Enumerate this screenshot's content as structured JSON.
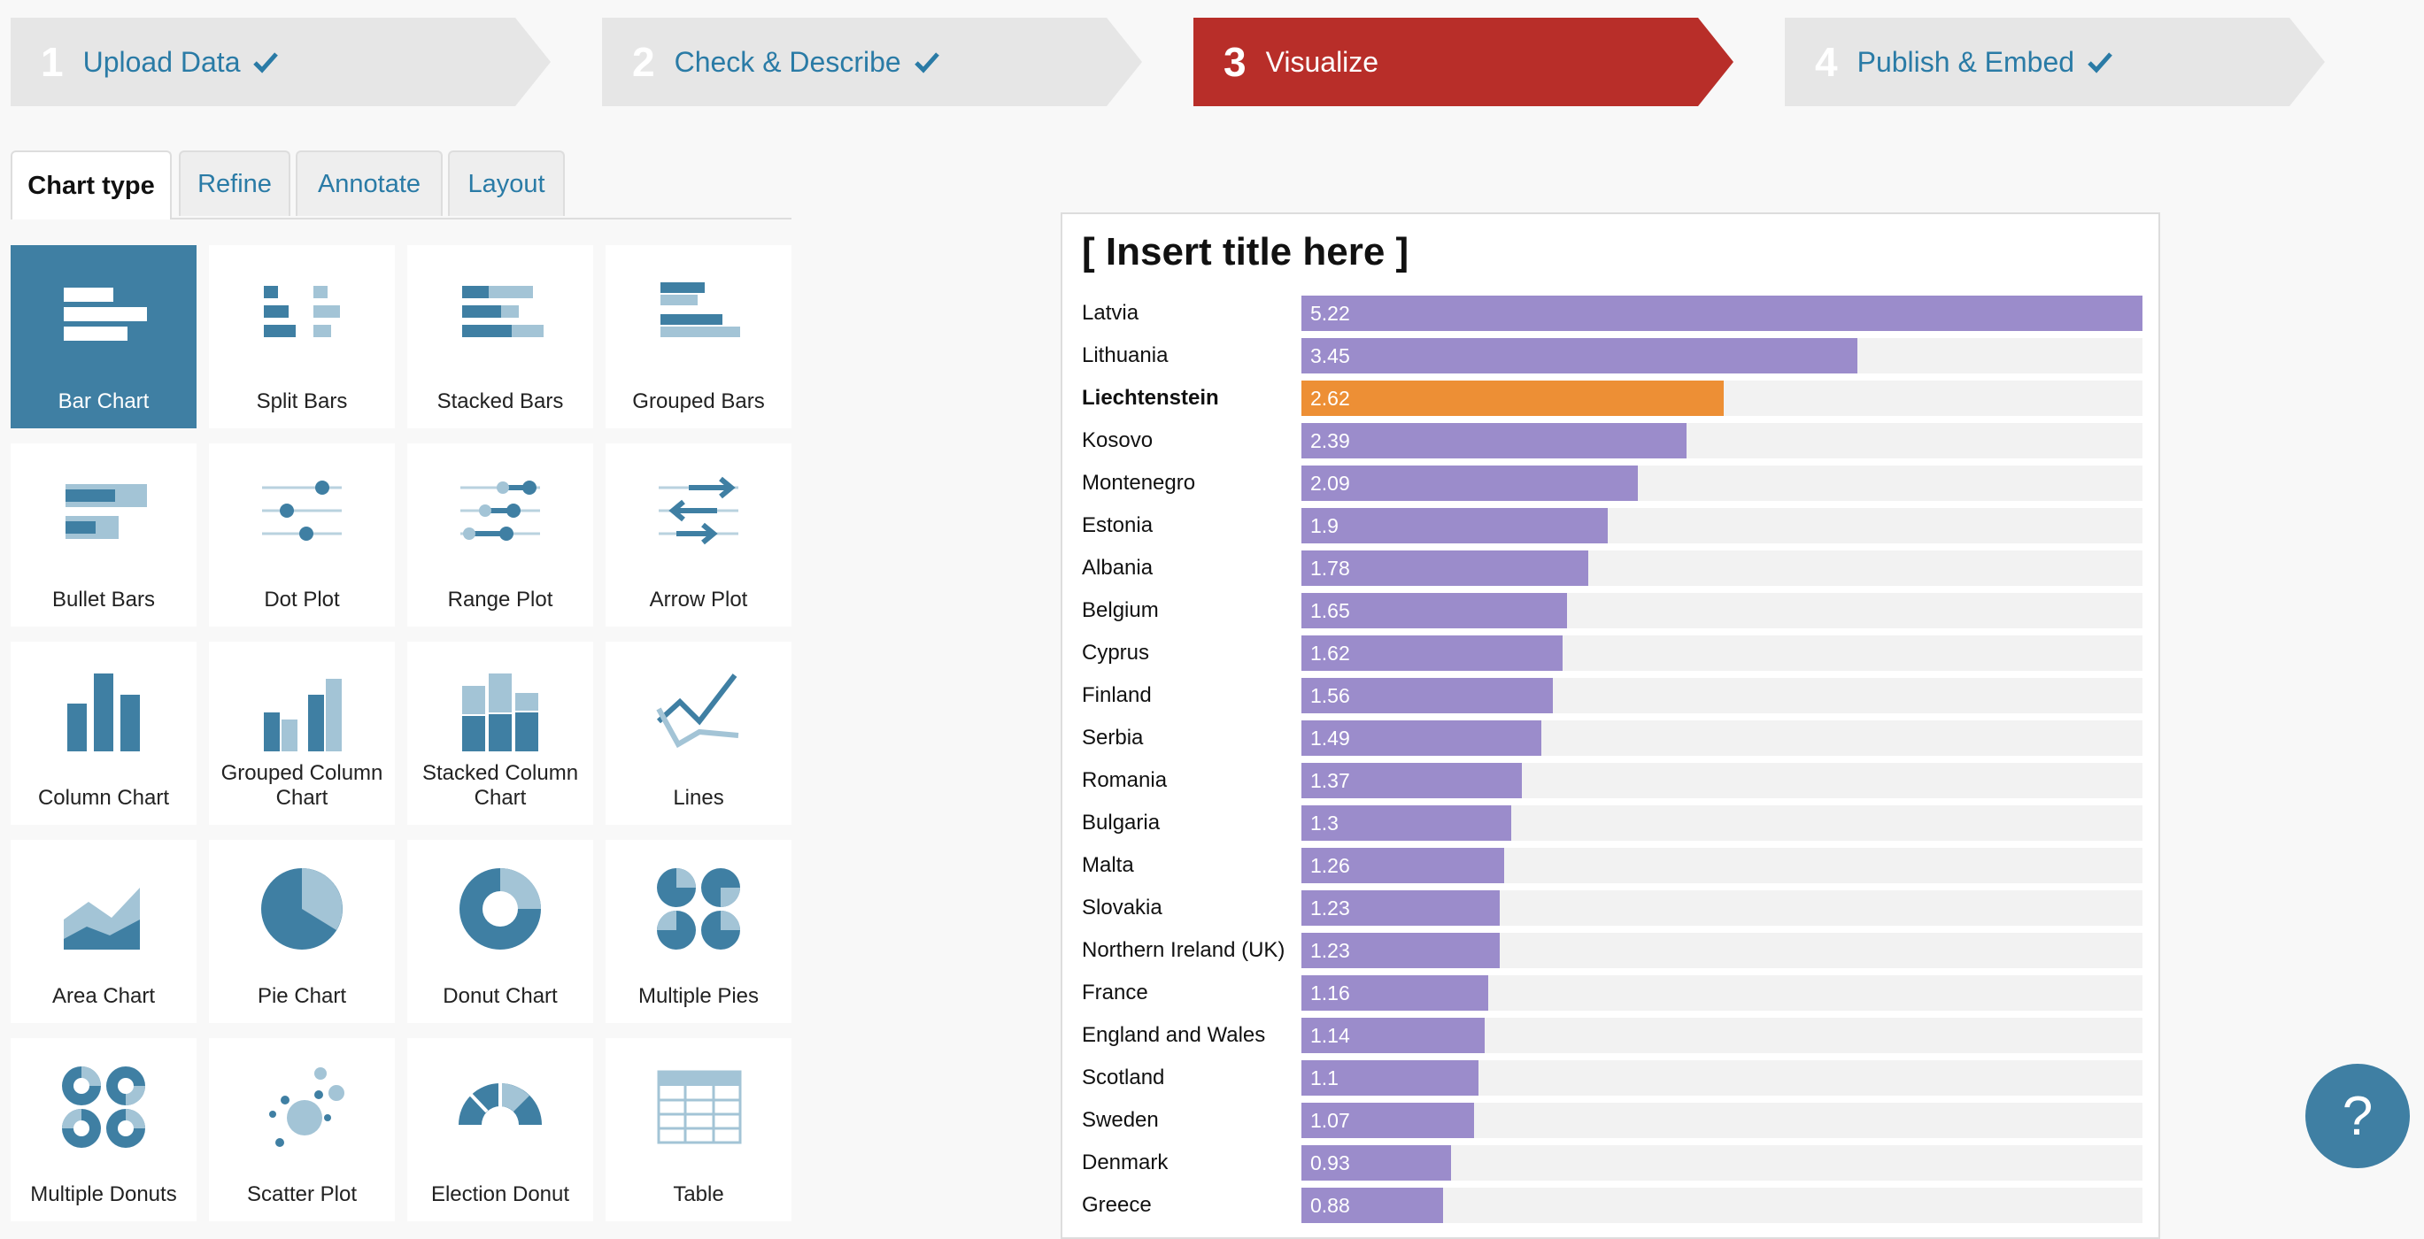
{
  "steps": [
    {
      "num": "1",
      "label": "Upload Data",
      "done": true
    },
    {
      "num": "2",
      "label": "Check & Describe",
      "done": true
    },
    {
      "num": "3",
      "label": "Visualize",
      "done": false
    },
    {
      "num": "4",
      "label": "Publish & Embed",
      "done": true
    }
  ],
  "tabs": [
    "Chart type",
    "Refine",
    "Annotate",
    "Layout"
  ],
  "chart_types": [
    {
      "label": "Bar Chart",
      "icon": "bar-chart-icon"
    },
    {
      "label": "Split Bars",
      "icon": "split-bars-icon"
    },
    {
      "label": "Stacked Bars",
      "icon": "stacked-bars-icon"
    },
    {
      "label": "Grouped Bars",
      "icon": "grouped-bars-icon"
    },
    {
      "label": "Bullet Bars",
      "icon": "bullet-bars-icon"
    },
    {
      "label": "Dot Plot",
      "icon": "dot-plot-icon"
    },
    {
      "label": "Range Plot",
      "icon": "range-plot-icon"
    },
    {
      "label": "Arrow Plot",
      "icon": "arrow-plot-icon"
    },
    {
      "label": "Column Chart",
      "icon": "column-chart-icon"
    },
    {
      "label": "Grouped Column Chart",
      "icon": "grouped-column-chart-icon"
    },
    {
      "label": "Stacked Column Chart",
      "icon": "stacked-column-chart-icon"
    },
    {
      "label": "Lines",
      "icon": "lines-icon"
    },
    {
      "label": "Area Chart",
      "icon": "area-chart-icon"
    },
    {
      "label": "Pie Chart",
      "icon": "pie-chart-icon"
    },
    {
      "label": "Donut Chart",
      "icon": "donut-chart-icon"
    },
    {
      "label": "Multiple Pies",
      "icon": "multiple-pies-icon"
    },
    {
      "label": "Multiple Donuts",
      "icon": "multiple-donuts-icon"
    },
    {
      "label": "Scatter Plot",
      "icon": "scatter-plot-icon"
    },
    {
      "label": "Election Donut",
      "icon": "election-donut-icon"
    },
    {
      "label": "Table",
      "icon": "table-icon"
    }
  ],
  "selected_chart_type": "Bar Chart",
  "colors": {
    "active_step": "#b82e29",
    "accent": "#3f7fa3",
    "link": "#2a7ba6",
    "bar": "#9b8ccb",
    "highlight_bar": "#ed8f35"
  },
  "help_label": "?",
  "chart_data": {
    "type": "bar",
    "title": "[ Insert title here ]",
    "categories": [
      "Latvia",
      "Lithuania",
      "Liechtenstein",
      "Kosovo",
      "Montenegro",
      "Estonia",
      "Albania",
      "Belgium",
      "Cyprus",
      "Finland",
      "Serbia",
      "Romania",
      "Bulgaria",
      "Malta",
      "Slovakia",
      "Northern Ireland (UK)",
      "France",
      "England and Wales",
      "Scotland",
      "Sweden",
      "Denmark",
      "Greece"
    ],
    "values": [
      5.22,
      3.45,
      2.62,
      2.39,
      2.09,
      1.9,
      1.78,
      1.65,
      1.62,
      1.56,
      1.49,
      1.37,
      1.3,
      1.26,
      1.23,
      1.23,
      1.16,
      1.14,
      1.1,
      1.07,
      0.93,
      0.88
    ],
    "value_labels": [
      "5.22",
      "3.45",
      "2.62",
      "2.39",
      "2.09",
      "1.9",
      "1.78",
      "1.65",
      "1.62",
      "1.56",
      "1.49",
      "1.37",
      "1.3",
      "1.26",
      "1.23",
      "1.23",
      "1.16",
      "1.14",
      "1.1",
      "1.07",
      "0.93",
      "0.88"
    ],
    "highlighted": [
      "Liechtenstein"
    ],
    "xlim": [
      0,
      5.22
    ]
  }
}
